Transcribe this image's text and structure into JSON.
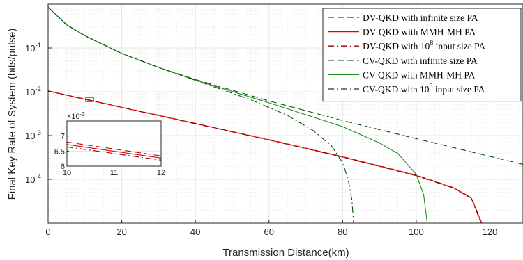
{
  "chart_data": {
    "type": "line",
    "title": "",
    "xlabel": "Transmission Distance(km)",
    "ylabel": "Final Key Rate of System (bits/pulse)",
    "xlim": [
      0,
      129
    ],
    "ylim": [
      1e-05,
      1
    ],
    "yscale": "log",
    "grid": true,
    "legend_position": "top-right",
    "x_ticks": [
      0,
      20,
      40,
      60,
      80,
      100,
      120
    ],
    "x_tick_labels": [
      "0",
      "20",
      "40",
      "60",
      "80",
      "100",
      "120"
    ],
    "y_ticks": [
      0.0001,
      0.001,
      0.01,
      0.1
    ],
    "y_tick_labels": [
      {
        "base": "10",
        "exp": "-4"
      },
      {
        "base": "10",
        "exp": "-3"
      },
      {
        "base": "10",
        "exp": "-2"
      },
      {
        "base": "10",
        "exp": "-1"
      }
    ],
    "series": [
      {
        "name": "DV-QKD with infinite size PA",
        "color": "#c00000",
        "dash": "dashed",
        "x": [
          0,
          20,
          40,
          60,
          80,
          100,
          110,
          115,
          117.8
        ],
        "y": [
          0.0105,
          0.00445,
          0.0019,
          0.00081,
          0.00033,
          0.000125,
          6.55e-05,
          3.8e-05,
          1e-05
        ]
      },
      {
        "name": "DV-QKD with MMH-MH PA",
        "color": "#e00000",
        "dash": "solid",
        "x": [
          0,
          20,
          40,
          60,
          80,
          100,
          110,
          115,
          117.8
        ],
        "y": [
          0.0104,
          0.0044,
          0.00188,
          0.0008,
          0.000326,
          0.000123,
          6.45e-05,
          3.7e-05,
          1e-05
        ]
      },
      {
        "name": "DV-QKD with 10^8 input size PA",
        "color": "#990000",
        "dash": "dashdot",
        "x": [
          0,
          20,
          40,
          60,
          80,
          100,
          110,
          115,
          117.6
        ],
        "y": [
          0.0103,
          0.00437,
          0.00186,
          0.00079,
          0.000322,
          0.000121,
          6.35e-05,
          3.65e-05,
          1e-05
        ]
      },
      {
        "name": "CV-QKD with infinite size PA",
        "color": "#004d00",
        "dash": "dashed",
        "x": [
          0,
          5,
          10,
          20,
          30,
          40,
          60,
          80,
          100,
          129
        ],
        "y": [
          0.85,
          0.34,
          0.19,
          0.075,
          0.036,
          0.019,
          0.0062,
          0.0022,
          0.00085,
          0.00022
        ]
      },
      {
        "name": "CV-QKD with MMH-MH PA",
        "color": "#1a8c1a",
        "dash": "solid",
        "x": [
          0,
          5,
          10,
          20,
          30,
          40,
          60,
          80,
          90,
          95,
          100,
          102,
          103
        ],
        "y": [
          0.85,
          0.34,
          0.19,
          0.075,
          0.036,
          0.0185,
          0.0056,
          0.0016,
          0.00068,
          0.00039,
          0.00013,
          4.5e-05,
          1e-05
        ]
      },
      {
        "name": "CV-QKD with 10^8 input size PA",
        "color": "#004d00",
        "dash": "dashdot",
        "x": [
          0,
          5,
          10,
          20,
          30,
          40,
          55,
          65,
          72,
          77,
          80,
          81.5,
          82.5,
          83
        ],
        "y": [
          0.85,
          0.34,
          0.19,
          0.075,
          0.036,
          0.0183,
          0.0066,
          0.0029,
          0.0013,
          0.00058,
          0.00024,
          0.0001,
          3.5e-05,
          1e-05
        ]
      }
    ],
    "inset": {
      "xlim": [
        10,
        12
      ],
      "ylim": [
        0.006,
        0.0075
      ],
      "x_tick_labels": [
        "10",
        "11",
        "12"
      ],
      "y_tick_labels": [
        "6",
        "6.5",
        "7"
      ],
      "y_multiplier": {
        "base": "10",
        "exp": "-3"
      },
      "series": [
        {
          "name": "DV-QKD with infinite size PA",
          "y": [
            0.0068,
            0.00634
          ]
        },
        {
          "name": "DV-QKD with MMH-MH PA",
          "y": [
            0.00672,
            0.00627
          ]
        },
        {
          "name": "DV-QKD with 10^8 input size PA",
          "y": [
            0.00664,
            0.0062
          ]
        }
      ]
    }
  }
}
